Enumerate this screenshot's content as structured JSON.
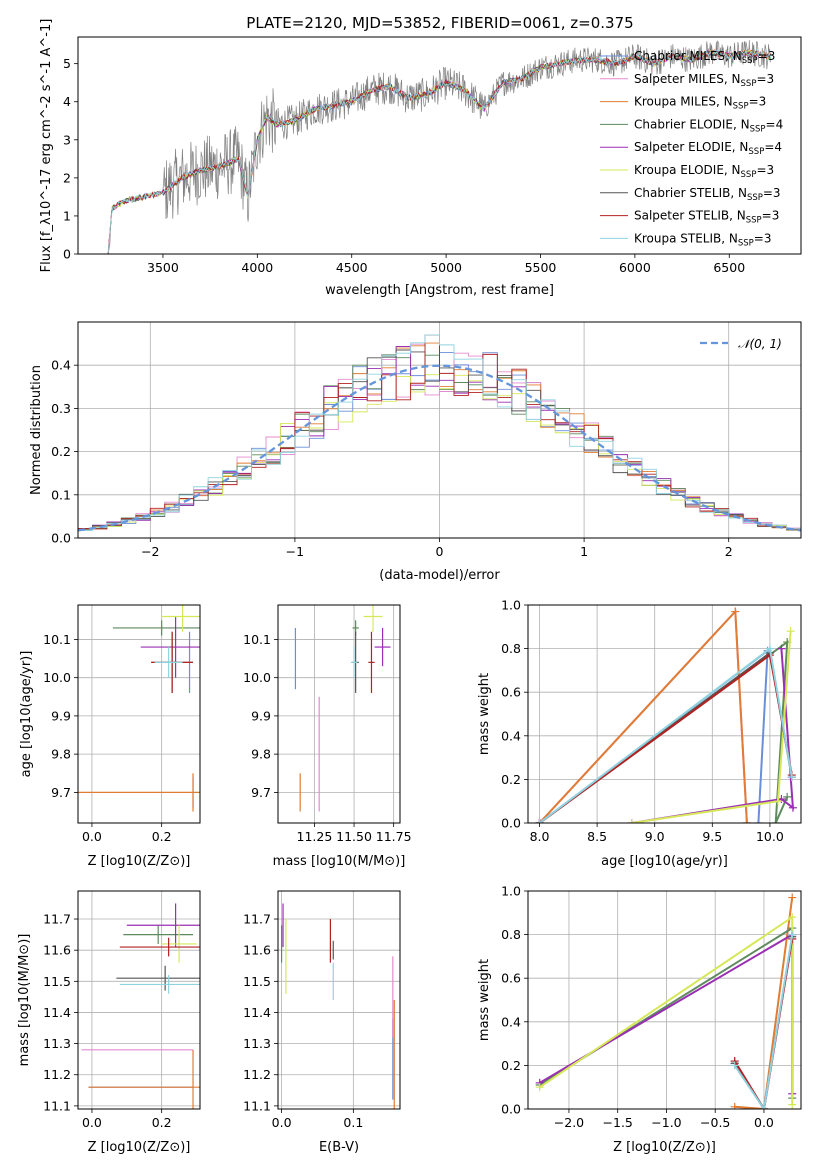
{
  "colors": {
    "Chabrier MILES": "#6a8fd8",
    "Salpeter MILES": "#e58ad0",
    "Kroupa MILES": "#e07c33",
    "Chabrier ELODIE": "#5e8a5e",
    "Salpeter ELODIE": "#9a2fb3",
    "Kroupa ELODIE": "#d6e85a",
    "Chabrier STELIB": "#555555",
    "Salpeter STELIB": "#b22222",
    "Kroupa STELIB": "#8fd3e0"
  },
  "chart_data": [
    {
      "type": "line",
      "title": "PLATE=2120, MJD=53852, FIBERID=0061, z=0.375",
      "xlabel": "wavelength [Angstrom, rest frame]",
      "ylabel": "Flux [f_λ10^-17 erg cm^-2 s^-1 A^-1]",
      "xlim": [
        3050,
        6880
      ],
      "ylim": [
        0,
        5.7
      ],
      "xticks": [
        3500,
        4000,
        4500,
        5000,
        5500,
        6000,
        6500
      ],
      "yticks": [
        0,
        1,
        2,
        3,
        4,
        5
      ],
      "legend_position": "top-right",
      "legend": [
        "Chabrier MILES, N_SSP=3",
        "Salpeter MILES, N_SSP=3",
        "Kroupa MILES, N_SSP=3",
        "Chabrier ELODIE, N_SSP=4",
        "Salpeter ELODIE, N_SSP=4",
        "Kroupa ELODIE, N_SSP=3",
        "Chabrier STELIB, N_SSP=3",
        "Salpeter STELIB, N_SSP=3",
        "Kroupa STELIB, N_SSP=3"
      ],
      "data_color": "#808080",
      "model_x": [
        3210,
        3230,
        3300,
        3400,
        3500,
        3550,
        3600,
        3700,
        3800,
        3900,
        3950,
        4000,
        4050,
        4100,
        4200,
        4300,
        4400,
        4500,
        4600,
        4700,
        4800,
        4900,
        5000,
        5100,
        5200,
        5300,
        5400,
        5500,
        5600,
        5700,
        5800,
        5900,
        6000,
        6100,
        6200,
        6300,
        6400,
        6500,
        6600,
        6700
      ],
      "model_y": [
        0,
        1.2,
        1.4,
        1.5,
        1.6,
        1.8,
        2.0,
        2.2,
        2.3,
        2.5,
        1.5,
        3.0,
        3.6,
        3.4,
        3.5,
        3.8,
        3.9,
        4.0,
        4.3,
        4.4,
        4.1,
        4.2,
        4.5,
        4.3,
        3.8,
        4.5,
        4.6,
        4.9,
        5.0,
        5.1,
        5.1,
        5.0,
        5.2,
        5.0,
        5.2,
        5.1,
        5.3,
        5.2,
        5.3,
        5.2
      ]
    },
    {
      "type": "line",
      "xlabel": "(data-model)/error",
      "ylabel": "Normed distribution",
      "xlim": [
        -2.5,
        2.5
      ],
      "ylim": [
        0,
        0.5
      ],
      "xticks": [
        -2,
        -1,
        0,
        1,
        2
      ],
      "yticks": [
        0.0,
        0.1,
        0.2,
        0.3,
        0.4
      ],
      "legend_position": "top-right",
      "legend": [
        "𝒩(0, 1)"
      ],
      "normal_color": "#6495dd",
      "bin_width": 0.1
    },
    {
      "type": "scatter",
      "xlabel": "Z [log10(Z/Z⊙)]",
      "ylabel": "age  [log10(age/yr)]",
      "xlim": [
        -0.04,
        0.31
      ],
      "ylim": [
        9.62,
        10.19
      ],
      "xticks": [
        0.0,
        0.2
      ],
      "yticks": [
        9.7,
        9.8,
        9.9,
        10.0,
        10.1
      ],
      "points": [
        {
          "model": "Chabrier MILES",
          "x": 0.28,
          "y": 10.04,
          "xerr": 0.0,
          "yerr": 0.08
        },
        {
          "model": "Salpeter MILES",
          "x": 0.29,
          "y": 9.7,
          "xerr": 0.0,
          "yerr": 0.04
        },
        {
          "model": "Kroupa MILES",
          "x": 0.29,
          "y": 9.7,
          "xerr": 0.33,
          "yerr": 0.05
        },
        {
          "model": "Chabrier ELODIE",
          "x": 0.2,
          "y": 10.13,
          "xerr": 0.14,
          "yerr": 0.02
        },
        {
          "model": "Salpeter ELODIE",
          "x": 0.24,
          "y": 10.08,
          "xerr": 0.1,
          "yerr": 0.08
        },
        {
          "model": "Kroupa ELODIE",
          "x": 0.26,
          "y": 10.16,
          "xerr": 0.06,
          "yerr": 0.04
        },
        {
          "model": "Chabrier STELIB",
          "x": 0.23,
          "y": 10.04,
          "xerr": 0.06,
          "yerr": 0.08
        },
        {
          "model": "Salpeter STELIB",
          "x": 0.23,
          "y": 10.04,
          "xerr": 0.06,
          "yerr": 0.08
        },
        {
          "model": "Kroupa STELIB",
          "x": 0.22,
          "y": 10.04,
          "xerr": 0.04,
          "yerr": 0.04
        }
      ]
    },
    {
      "type": "scatter",
      "xlabel": "mass [log10(M/M⊙)]",
      "xlim": [
        11.02,
        11.79
      ],
      "ylim": [
        9.62,
        10.19
      ],
      "xticks": [
        11.25,
        11.5,
        11.75
      ],
      "yticks": [
        9.7,
        9.8,
        9.9,
        10.0,
        10.1
      ],
      "points": [
        {
          "model": "Chabrier MILES",
          "x": 11.13,
          "y": 10.05,
          "xerr": 0.0,
          "yerr": 0.08
        },
        {
          "model": "Salpeter MILES",
          "x": 11.28,
          "y": 9.8,
          "xerr": 0.0,
          "yerr": 0.15
        },
        {
          "model": "Kroupa MILES",
          "x": 11.16,
          "y": 9.7,
          "xerr": 0.0,
          "yerr": 0.05
        },
        {
          "model": "Chabrier ELODIE",
          "x": 11.51,
          "y": 10.13,
          "xerr": 0.02,
          "yerr": 0.02
        },
        {
          "model": "Salpeter ELODIE",
          "x": 11.68,
          "y": 10.08,
          "xerr": 0.05,
          "yerr": 0.05
        },
        {
          "model": "Kroupa ELODIE",
          "x": 11.62,
          "y": 10.16,
          "xerr": 0.06,
          "yerr": 0.04
        },
        {
          "model": "Chabrier STELIB",
          "x": 11.51,
          "y": 10.04,
          "xerr": 0.02,
          "yerr": 0.08
        },
        {
          "model": "Salpeter STELIB",
          "x": 11.61,
          "y": 10.04,
          "xerr": 0.02,
          "yerr": 0.08
        },
        {
          "model": "Kroupa STELIB",
          "x": 11.5,
          "y": 10.04,
          "xerr": 0.02,
          "yerr": 0.04
        }
      ]
    },
    {
      "type": "line",
      "xlabel": "age  [log10(age/yr)]",
      "ylabel": "mass weight",
      "xlim": [
        7.9,
        10.27
      ],
      "ylim": [
        0,
        1.0
      ],
      "xticks": [
        8.0,
        8.5,
        9.0,
        9.5,
        10.0
      ],
      "yticks": [
        0.0,
        0.2,
        0.4,
        0.6,
        0.8,
        1.0
      ],
      "series": [
        {
          "model": "Chabrier MILES",
          "x": [
            8.0,
            9.98,
            9.9
          ],
          "y": [
            0.0,
            0.79,
            0.0
          ]
        },
        {
          "model": "Salpeter MILES",
          "x": [
            8.0,
            9.7,
            9.8
          ],
          "y": [
            0.0,
            0.97,
            0.0
          ]
        },
        {
          "model": "Kroupa MILES",
          "x": [
            8.0,
            9.7,
            9.8
          ],
          "y": [
            0.0,
            0.97,
            0.0
          ]
        },
        {
          "model": "Chabrier ELODIE",
          "x": [
            8.0,
            10.15,
            10.05,
            10.15
          ],
          "y": [
            0.0,
            0.83,
            0.0,
            0.12
          ]
        },
        {
          "model": "Salpeter ELODIE",
          "x": [
            8.8,
            10.1,
            10.2,
            10.1
          ],
          "y": [
            0.0,
            0.11,
            0.07,
            0.8
          ]
        },
        {
          "model": "Kroupa ELODIE",
          "x": [
            8.8,
            10.07,
            10.18
          ],
          "y": [
            0.0,
            0.1,
            0.88
          ]
        },
        {
          "model": "Chabrier STELIB",
          "x": [
            8.0,
            10.0,
            10.19
          ],
          "y": [
            0.0,
            0.78,
            0.21
          ]
        },
        {
          "model": "Salpeter STELIB",
          "x": [
            8.0,
            10.0,
            10.19
          ],
          "y": [
            0.0,
            0.77,
            0.22
          ]
        },
        {
          "model": "Kroupa STELIB",
          "x": [
            8.0,
            10.0,
            10.19
          ],
          "y": [
            0.0,
            0.8,
            0.21
          ]
        }
      ]
    },
    {
      "type": "scatter",
      "xlabel": "Z [log10(Z/Z⊙)]",
      "ylabel": "mass [log10(M/M⊙)]",
      "xlim": [
        -0.04,
        0.31
      ],
      "ylim": [
        11.09,
        11.79
      ],
      "xticks": [
        0.0,
        0.2
      ],
      "yticks": [
        11.1,
        11.2,
        11.3,
        11.4,
        11.5,
        11.6,
        11.7
      ],
      "points": [
        {
          "model": "Chabrier MILES",
          "x": 0.14,
          "y": 11.16,
          "xerr": 0.15,
          "yerr": 0.0
        },
        {
          "model": "Salpeter MILES",
          "x": 0.13,
          "y": 11.28,
          "xerr": 0.16,
          "yerr": 0.0
        },
        {
          "model": "Kroupa MILES",
          "x": 0.29,
          "y": 11.16,
          "xerr": 0.3,
          "yerr": 0.12
        },
        {
          "model": "Chabrier ELODIE",
          "x": 0.19,
          "y": 11.65,
          "xerr": 0.1,
          "yerr": 0.03
        },
        {
          "model": "Salpeter ELODIE",
          "x": 0.24,
          "y": 11.68,
          "xerr": 0.14,
          "yerr": 0.07
        },
        {
          "model": "Kroupa ELODIE",
          "x": 0.25,
          "y": 11.62,
          "xerr": 0.05,
          "yerr": 0.06
        },
        {
          "model": "Chabrier STELIB",
          "x": 0.21,
          "y": 11.51,
          "xerr": 0.14,
          "yerr": 0.04
        },
        {
          "model": "Salpeter STELIB",
          "x": 0.22,
          "y": 11.61,
          "xerr": 0.14,
          "yerr": 0.03
        },
        {
          "model": "Kroupa STELIB",
          "x": 0.22,
          "y": 11.49,
          "xerr": 0.14,
          "yerr": 0.03
        }
      ]
    },
    {
      "type": "scatter",
      "xlabel": "E(B-V)",
      "xlim": [
        -0.005,
        0.165
      ],
      "ylim": [
        11.09,
        11.79
      ],
      "xticks": [
        0.0,
        0.1
      ],
      "yticks": [
        11.1,
        11.2,
        11.3,
        11.4,
        11.5,
        11.6,
        11.7
      ],
      "points": [
        {
          "model": "Chabrier MILES",
          "x": 0.155,
          "y": 11.25,
          "xerr": 0.0,
          "yerr": 0.13
        },
        {
          "model": "Salpeter MILES",
          "x": 0.155,
          "y": 11.45,
          "xerr": 0.0,
          "yerr": 0.13
        },
        {
          "model": "Kroupa MILES",
          "x": 0.157,
          "y": 11.25,
          "xerr": 0.0,
          "yerr": 0.19
        },
        {
          "model": "Chabrier ELODIE",
          "x": 0.0,
          "y": 11.62,
          "xerr": 0.0,
          "yerr": 0.06
        },
        {
          "model": "Salpeter ELODIE",
          "x": 0.002,
          "y": 11.68,
          "xerr": 0.0,
          "yerr": 0.07
        },
        {
          "model": "Kroupa ELODIE",
          "x": 0.006,
          "y": 11.58,
          "xerr": 0.0,
          "yerr": 0.12
        },
        {
          "model": "Chabrier STELIB",
          "x": 0.072,
          "y": 11.6,
          "xerr": 0.0,
          "yerr": 0.03
        },
        {
          "model": "Salpeter STELIB",
          "x": 0.068,
          "y": 11.63,
          "xerr": 0.0,
          "yerr": 0.07
        },
        {
          "model": "Kroupa STELIB",
          "x": 0.072,
          "y": 11.5,
          "xerr": 0.0,
          "yerr": 0.06
        }
      ]
    },
    {
      "type": "line",
      "xlabel": "Z [log10(Z/Z⊙)]",
      "ylabel": "mass weight",
      "xlim": [
        -2.42,
        0.38
      ],
      "ylim": [
        0,
        1.0
      ],
      "xticks": [
        -2.0,
        -1.5,
        -1.0,
        -0.5,
        0.0
      ],
      "yticks": [
        0.0,
        0.2,
        0.4,
        0.6,
        0.8,
        1.0
      ],
      "series": [
        {
          "model": "Chabrier MILES",
          "x": [
            -0.3,
            0.0,
            0.29
          ],
          "y": [
            0.21,
            0.0,
            0.78
          ]
        },
        {
          "model": "Salpeter MILES",
          "x": [
            -0.3,
            0.0,
            0.29
          ],
          "y": [
            0.22,
            0.0,
            0.78
          ]
        },
        {
          "model": "Kroupa MILES",
          "x": [
            -0.3,
            0.0,
            0.29
          ],
          "y": [
            0.01,
            0.0,
            0.97
          ]
        },
        {
          "model": "Chabrier ELODIE",
          "x": [
            -2.3,
            0.29,
            0.29
          ],
          "y": [
            0.11,
            0.83,
            0.05
          ]
        },
        {
          "model": "Salpeter ELODIE",
          "x": [
            -2.3,
            0.29,
            0.29
          ],
          "y": [
            0.12,
            0.8,
            0.07
          ]
        },
        {
          "model": "Kroupa ELODIE",
          "x": [
            -2.3,
            0.29,
            0.29
          ],
          "y": [
            0.1,
            0.88,
            0.02
          ]
        },
        {
          "model": "Chabrier STELIB",
          "x": [
            -0.3,
            0.0,
            0.29
          ],
          "y": [
            0.21,
            0.0,
            0.79
          ]
        },
        {
          "model": "Salpeter STELIB",
          "x": [
            -0.3,
            0.0,
            0.29
          ],
          "y": [
            0.22,
            0.0,
            0.78
          ]
        },
        {
          "model": "Kroupa STELIB",
          "x": [
            -0.3,
            0.0,
            0.29
          ],
          "y": [
            0.2,
            0.0,
            0.8
          ]
        }
      ]
    }
  ]
}
